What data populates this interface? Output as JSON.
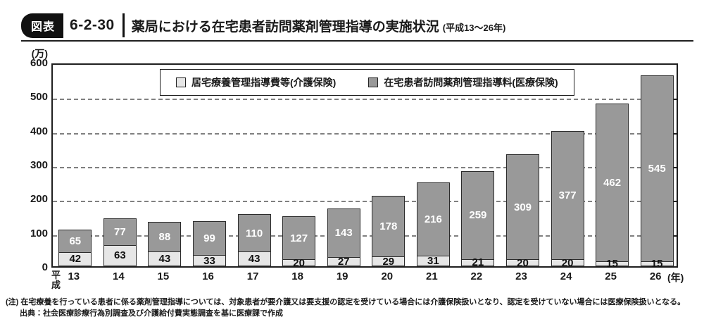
{
  "header": {
    "badge": "図表",
    "number": "6-2-30",
    "title": "薬局における在宅患者訪問薬剤管理指導の実施状況",
    "subtitle": "(平成13～26年)"
  },
  "chart_data": {
    "type": "bar",
    "stacked": true,
    "title": "薬局における在宅患者訪問薬剤管理指導の実施状況 (平成13～26年)",
    "categories": [
      "13",
      "14",
      "15",
      "16",
      "17",
      "18",
      "19",
      "20",
      "21",
      "22",
      "23",
      "24",
      "25",
      "26"
    ],
    "series": [
      {
        "name": "居宅療養管理指導費等(介護保険)",
        "color": "#e6e6e6",
        "label_color": "#111111",
        "values": [
          42,
          63,
          43,
          33,
          43,
          20,
          27,
          29,
          31,
          21,
          20,
          20,
          15,
          15
        ]
      },
      {
        "name": "在宅患者訪問薬剤管理指導料(医療保険)",
        "color": "#999999",
        "label_color": "#ffffff",
        "values": [
          65,
          77,
          88,
          99,
          110,
          127,
          143,
          178,
          216,
          259,
          309,
          377,
          462,
          545
        ]
      }
    ],
    "ylim": [
      0,
      600
    ],
    "ytick_interval": 100,
    "y_unit": "(万)",
    "x_unit": "(年)",
    "x_era": "平成",
    "grid": "horizontal-dashed",
    "legend_position": "top-center-inside",
    "bar_border_color": "#2b2b2b"
  },
  "footnotes": {
    "note": "(注) 在宅療養を行っている患者に係る薬剤管理指導については、対象患者が要介護又は要支援の認定を受けている場合には介護保険扱いとなり、認定を受けていない場合には医療保険扱いとなる。",
    "source": "出典：社会医療診療行為別調査及び介護給付費実態調査を基に医療課で作成"
  }
}
